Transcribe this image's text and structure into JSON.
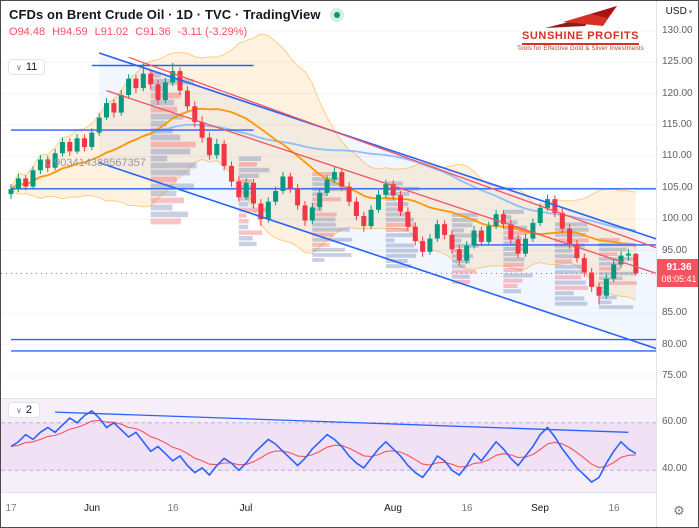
{
  "header": {
    "title": "CFDs on Brent Crude Oil · 1D · TVC · TradingView",
    "ohlc": [
      {
        "l": "O",
        "v": "94.48"
      },
      {
        "l": "H",
        "v": "94.59"
      },
      {
        "l": "L",
        "v": "91.02"
      },
      {
        "l": "C",
        "v": "91.36"
      }
    ],
    "change": "-3.11 (-3.29%)"
  },
  "logo": {
    "name": "SUNSHINE PROFITS",
    "tagline": "Tools for Effective Gold & Silver Investments"
  },
  "badges": {
    "main": "11",
    "indicator": "2"
  },
  "fib_label": "0.903414388567357",
  "last_price": {
    "value": "91.36",
    "countdown": "08:05:41"
  },
  "icons": {
    "chevron_down": "∨",
    "caret_down": "▾",
    "gear": "⚙"
  },
  "axes": {
    "currency": "USD",
    "price_labels": [
      {
        "p": 130,
        "t": "130.00"
      },
      {
        "p": 125,
        "t": "125.00"
      },
      {
        "p": 120,
        "t": "120.00"
      },
      {
        "p": 115,
        "t": "115.00"
      },
      {
        "p": 110,
        "t": "110.00"
      },
      {
        "p": 105,
        "t": "105.00"
      },
      {
        "p": 100,
        "t": "100.00"
      },
      {
        "p": 95,
        "t": "95.00"
      },
      {
        "p": 85,
        "t": "85.00"
      },
      {
        "p": 80,
        "t": "80.00"
      },
      {
        "p": 75,
        "t": "75.00"
      }
    ],
    "indicator_labels": [
      {
        "v": 60,
        "t": "60.00"
      },
      {
        "v": 40,
        "t": "40.00"
      }
    ],
    "time_labels": [
      {
        "i": 0,
        "t": "17",
        "major": false
      },
      {
        "i": 11,
        "t": "Jun",
        "major": true
      },
      {
        "i": 22,
        "t": "16",
        "major": false
      },
      {
        "i": 32,
        "t": "Jul",
        "major": true
      },
      {
        "i": 52,
        "t": "Aug",
        "major": true
      },
      {
        "i": 62,
        "t": "16",
        "major": false
      },
      {
        "i": 72,
        "t": "Sep",
        "major": true
      },
      {
        "i": 82,
        "t": "16",
        "major": false
      }
    ]
  },
  "colors": {
    "up": "#089981",
    "down": "#f23645",
    "blue": "#2962ff",
    "red": "#f7525f",
    "ma_fast": "#ff9800",
    "ma_slow": "#90bff9",
    "band_fill": "rgba(255,152,0,0.12)",
    "band_edge": "rgba(255,152,0,0.45)",
    "channel_fill": "rgba(41,98,255,0.06)",
    "profile_blue": "rgba(100,120,170,0.35)",
    "profile_red": "rgba(242,84,91,0.35)",
    "grid": "rgba(42,46,57,0.05)",
    "ind_blue": "#2962ff",
    "ind_red": "#f7525f",
    "ind_band": "rgba(156,39,176,0.06)",
    "ind_dash": "rgba(149,117,205,0.55)"
  },
  "chart_data": {
    "type": "candlestick",
    "ylim": [
      75,
      130
    ],
    "candles": [
      [
        104.0,
        105.6,
        103.2,
        104.8
      ],
      [
        104.8,
        107.2,
        104.3,
        106.5
      ],
      [
        106.5,
        107.0,
        104.6,
        105.2
      ],
      [
        105.2,
        108.4,
        104.9,
        107.8
      ],
      [
        107.8,
        110.2,
        107.2,
        109.5
      ],
      [
        109.5,
        110.1,
        107.5,
        108.2
      ],
      [
        108.2,
        111.2,
        107.8,
        110.5
      ],
      [
        110.5,
        113.0,
        110.0,
        112.3
      ],
      [
        112.3,
        112.9,
        110.1,
        110.8
      ],
      [
        110.8,
        113.6,
        110.4,
        112.9
      ],
      [
        112.9,
        113.5,
        110.8,
        111.5
      ],
      [
        111.5,
        114.5,
        111.0,
        113.8
      ],
      [
        113.8,
        116.9,
        113.3,
        116.2
      ],
      [
        116.2,
        119.3,
        115.8,
        118.5
      ],
      [
        118.5,
        119.1,
        116.2,
        117.0
      ],
      [
        117.0,
        120.6,
        116.5,
        119.8
      ],
      [
        119.8,
        123.1,
        119.2,
        122.4
      ],
      [
        122.4,
        123.0,
        120.1,
        120.9
      ],
      [
        120.9,
        124.8,
        120.4,
        123.2
      ],
      [
        123.2,
        123.9,
        120.7,
        121.5
      ],
      [
        121.5,
        122.2,
        118.2,
        119.0
      ],
      [
        119.0,
        122.5,
        118.5,
        121.8
      ],
      [
        121.8,
        124.9,
        121.2,
        123.6
      ],
      [
        123.6,
        124.2,
        119.8,
        120.5
      ],
      [
        120.5,
        121.2,
        117.3,
        118.0
      ],
      [
        118.0,
        118.8,
        114.7,
        115.5
      ],
      [
        115.5,
        116.4,
        112.2,
        113.0
      ],
      [
        113.0,
        113.8,
        109.5,
        110.2
      ],
      [
        110.2,
        112.8,
        109.6,
        112.0
      ],
      [
        112.0,
        112.6,
        107.8,
        108.5
      ],
      [
        108.5,
        109.2,
        105.2,
        106.0
      ],
      [
        106.0,
        106.8,
        102.8,
        103.5
      ],
      [
        103.5,
        106.5,
        103.0,
        105.8
      ],
      [
        105.8,
        106.4,
        101.8,
        102.5
      ],
      [
        102.5,
        103.2,
        98.9,
        100.0
      ],
      [
        100.0,
        103.5,
        99.4,
        102.8
      ],
      [
        102.8,
        105.2,
        102.2,
        104.5
      ],
      [
        104.5,
        107.5,
        104.0,
        106.8
      ],
      [
        106.8,
        107.4,
        104.2,
        104.9
      ],
      [
        104.9,
        105.6,
        101.5,
        102.2
      ],
      [
        102.2,
        102.9,
        98.9,
        99.8
      ],
      [
        99.8,
        102.6,
        99.2,
        101.9
      ],
      [
        101.9,
        104.9,
        101.4,
        104.2
      ],
      [
        104.2,
        107.0,
        103.7,
        106.3
      ],
      [
        106.3,
        108.3,
        105.8,
        107.5
      ],
      [
        107.5,
        108.1,
        104.5,
        105.2
      ],
      [
        105.2,
        105.9,
        102.1,
        102.8
      ],
      [
        102.8,
        103.5,
        99.8,
        100.5
      ],
      [
        100.5,
        101.2,
        98.0,
        98.9
      ],
      [
        98.9,
        102.2,
        98.4,
        101.5
      ],
      [
        101.5,
        104.6,
        101.0,
        103.9
      ],
      [
        103.9,
        106.3,
        103.4,
        105.6
      ],
      [
        105.6,
        106.2,
        103.1,
        103.8
      ],
      [
        103.8,
        104.5,
        100.5,
        101.2
      ],
      [
        101.2,
        101.9,
        98.1,
        98.8
      ],
      [
        98.8,
        99.5,
        95.8,
        96.5
      ],
      [
        96.5,
        97.2,
        94.0,
        94.8
      ],
      [
        94.8,
        97.6,
        94.3,
        96.9
      ],
      [
        96.9,
        99.9,
        96.4,
        99.2
      ],
      [
        99.2,
        99.8,
        96.8,
        97.5
      ],
      [
        97.5,
        98.2,
        94.5,
        95.2
      ],
      [
        95.2,
        95.9,
        92.6,
        93.4
      ],
      [
        93.4,
        96.5,
        92.9,
        95.8
      ],
      [
        95.8,
        98.9,
        95.3,
        98.2
      ],
      [
        98.2,
        98.8,
        95.7,
        96.4
      ],
      [
        96.4,
        99.6,
        95.9,
        98.9
      ],
      [
        98.9,
        101.5,
        98.4,
        100.8
      ],
      [
        100.8,
        101.4,
        98.5,
        99.2
      ],
      [
        99.2,
        99.9,
        96.1,
        96.8
      ],
      [
        96.8,
        97.5,
        93.8,
        94.5
      ],
      [
        94.5,
        97.6,
        94.0,
        96.9
      ],
      [
        96.9,
        100.1,
        96.4,
        99.4
      ],
      [
        99.4,
        102.5,
        98.9,
        101.8
      ],
      [
        101.8,
        103.9,
        101.3,
        103.2
      ],
      [
        103.2,
        103.8,
        100.3,
        101.0
      ],
      [
        101.0,
        101.7,
        97.8,
        98.5
      ],
      [
        98.5,
        99.2,
        95.3,
        96.0
      ],
      [
        96.0,
        96.7,
        93.1,
        93.8
      ],
      [
        93.8,
        94.5,
        90.8,
        91.5
      ],
      [
        91.5,
        92.2,
        88.4,
        89.2
      ],
      [
        89.2,
        89.9,
        86.4,
        87.8
      ],
      [
        87.8,
        91.2,
        87.3,
        90.5
      ],
      [
        90.5,
        93.5,
        90.0,
        92.8
      ],
      [
        92.8,
        94.9,
        92.3,
        94.2
      ],
      [
        94.2,
        95.3,
        93.4,
        94.5
      ],
      [
        94.48,
        94.59,
        91.02,
        91.36
      ]
    ],
    "channel": {
      "upper": {
        "x1": 12,
        "p1": 126.5,
        "x2": 90,
        "p2": 96.0
      },
      "lower": {
        "x1": 12,
        "p1": 109.0,
        "x2": 90,
        "p2": 78.5
      }
    },
    "red_lines": [
      {
        "x1": 13,
        "p1": 120.5,
        "x2": 90,
        "p2": 90.5
      },
      {
        "x1": 16,
        "p1": 125.8,
        "x2": 90,
        "p2": 94.5
      }
    ],
    "levels": [
      {
        "p": 124.5,
        "i1": 11,
        "i2": 33
      },
      {
        "p": 114.2,
        "i1": 0,
        "i2": 33
      },
      {
        "p": 104.85,
        "i1": 0,
        "i2": 90
      },
      {
        "p": 95.9,
        "i1": 63,
        "i2": 90
      },
      {
        "p": 80.8,
        "i1": 0,
        "i2": 90
      },
      {
        "p": 79.0,
        "i1": 0,
        "i2": 90
      }
    ],
    "volume_profiles": [
      {
        "i": 19,
        "top": 123.5,
        "bottom": 99.0,
        "w": 46,
        "bars": 22
      },
      {
        "i": 31,
        "top": 110.0,
        "bottom": 95.5,
        "w": 34,
        "bars": 16
      },
      {
        "i": 41,
        "top": 107.5,
        "bottom": 93.0,
        "w": 40,
        "bars": 18
      },
      {
        "i": 51,
        "top": 106.0,
        "bottom": 92.0,
        "w": 36,
        "bars": 17
      },
      {
        "i": 60,
        "top": 101.0,
        "bottom": 89.5,
        "w": 30,
        "bars": 14
      },
      {
        "i": 67,
        "top": 101.5,
        "bottom": 88.0,
        "w": 34,
        "bars": 16
      },
      {
        "i": 74,
        "top": 99.5,
        "bottom": 86.0,
        "w": 36,
        "bars": 16
      },
      {
        "i": 80,
        "top": 97.0,
        "bottom": 85.5,
        "w": 40,
        "bars": 15
      }
    ],
    "indicator": {
      "range": [
        30,
        70
      ],
      "values": [
        50,
        52,
        55,
        53,
        56,
        58,
        56,
        59,
        62,
        60,
        63,
        65,
        62,
        58,
        60,
        57,
        54,
        56,
        52,
        48,
        50,
        47,
        44,
        46,
        42,
        39,
        41,
        38,
        42,
        45,
        43,
        40,
        43,
        47,
        50,
        53,
        51,
        48,
        45,
        42,
        45,
        49,
        52,
        55,
        53,
        50,
        46,
        43,
        41,
        45,
        49,
        52,
        49,
        46,
        42,
        39,
        37,
        41,
        46,
        44,
        40,
        38,
        42,
        47,
        44,
        48,
        52,
        49,
        45,
        42,
        46,
        50,
        55,
        58,
        54,
        49,
        45,
        41,
        38,
        35,
        37,
        43,
        48,
        52,
        49,
        47
      ],
      "trendline": {
        "x1": 6,
        "v1": 64.5,
        "x2": 84,
        "v2": 56.0
      }
    }
  }
}
